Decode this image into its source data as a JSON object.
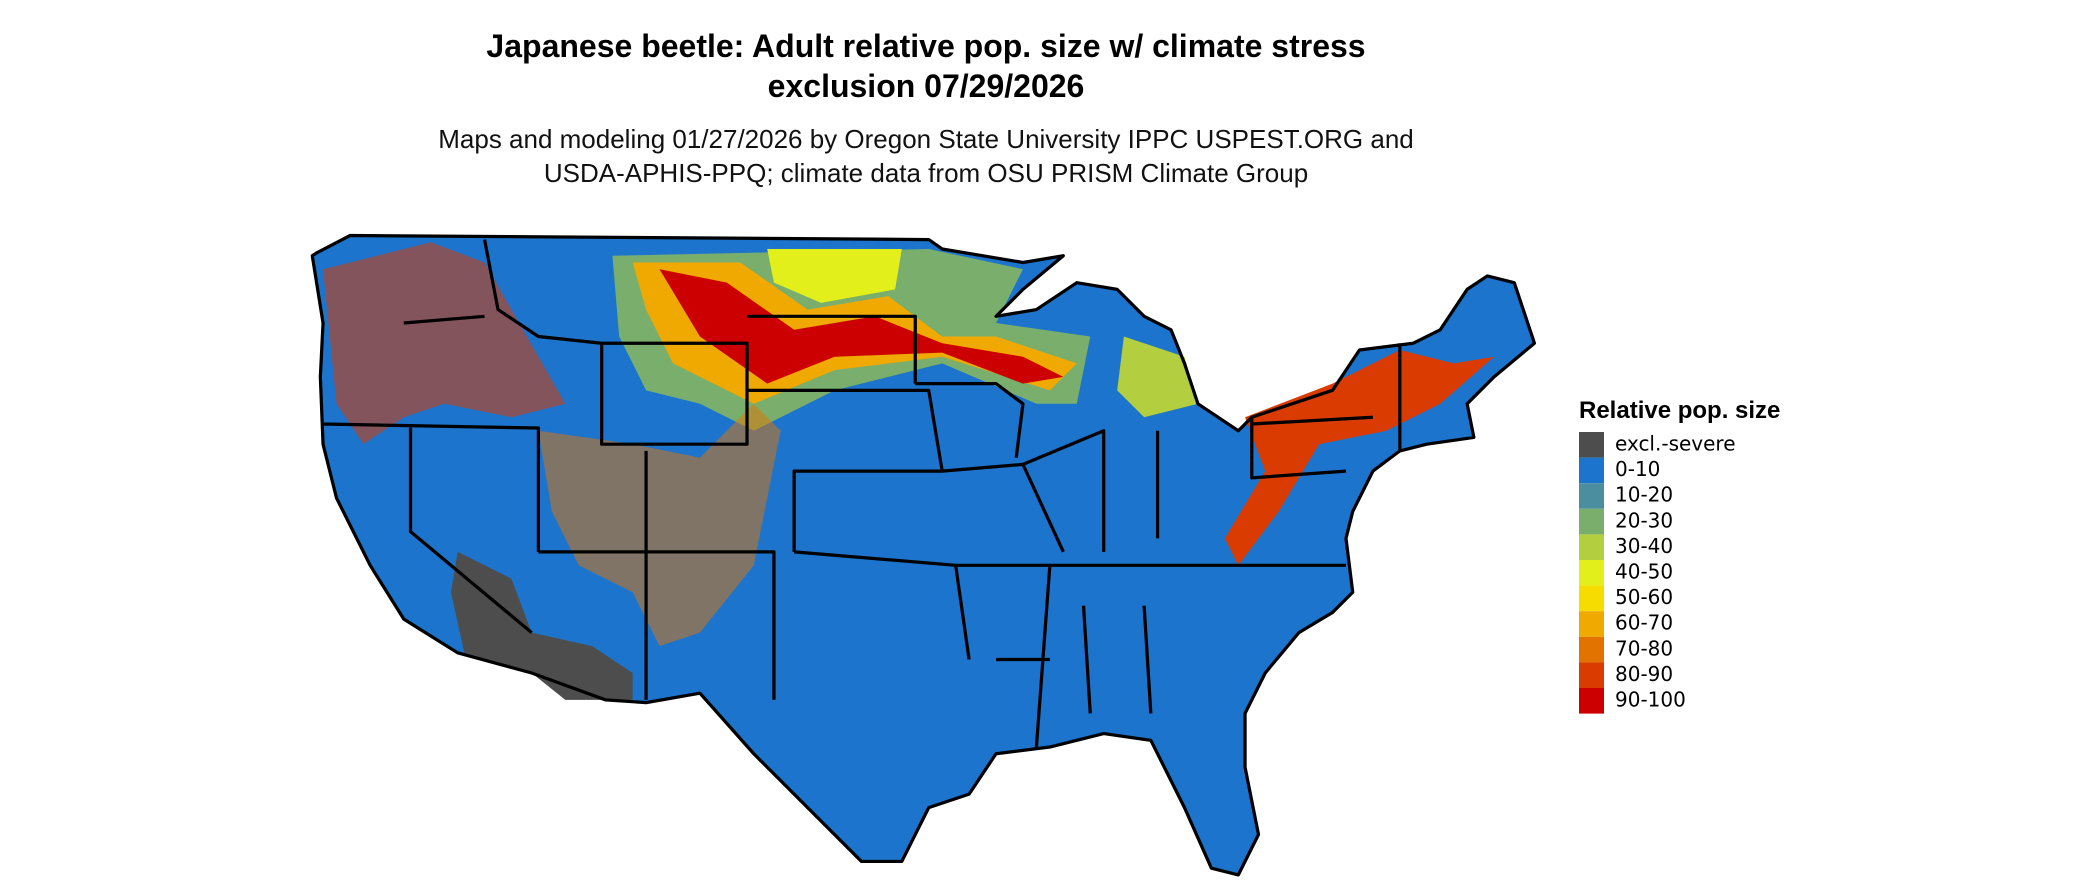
{
  "header": {
    "title": [
      "Japanese beetle: Adult relative pop. size w/ climate stress",
      "exclusion 07/29/2026"
    ],
    "subtitle": [
      "Maps and modeling 01/27/2026 by Oregon State University IPPC USPEST.ORG and",
      "USDA-APHIS-PPQ; climate data from OSU PRISM Climate Group"
    ]
  },
  "legend": {
    "title": "Relative pop. size",
    "items": [
      {
        "label": "excl.-severe",
        "color": "#4d4d4d"
      },
      {
        "label": "0-10",
        "color": "#1c74cc"
      },
      {
        "label": "10-20",
        "color": "#4a8ea0"
      },
      {
        "label": "20-30",
        "color": "#79ae6c"
      },
      {
        "label": "30-40",
        "color": "#b3cf40"
      },
      {
        "label": "40-50",
        "color": "#e3ef1a"
      },
      {
        "label": "50-60",
        "color": "#f7dc00"
      },
      {
        "label": "60-70",
        "color": "#efa900"
      },
      {
        "label": "70-80",
        "color": "#e37300"
      },
      {
        "label": "80-90",
        "color": "#d93b00"
      },
      {
        "label": "90-100",
        "color": "#cc0000"
      }
    ]
  }
}
